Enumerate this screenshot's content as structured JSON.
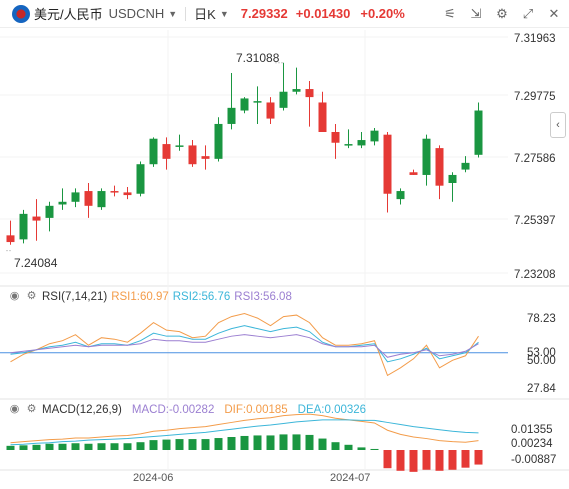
{
  "header": {
    "symbol_name": "美元/人民币",
    "symbol_code": "USDCNH",
    "period": "日K",
    "price": "7.29332",
    "change": "+0.01430",
    "change_pct": "+0.20%",
    "tools": [
      "indicators-icon",
      "fullscreen-exit-icon",
      "chart-settings-icon",
      "expand-icon",
      "close-icon"
    ],
    "up_color": "#e53935",
    "down_color": "#1a9641"
  },
  "main_panel": {
    "price_axis": [
      "7.31963",
      "7.29775",
      "7.27586",
      "7.25397",
      "7.23208"
    ],
    "high_label": "7.31088",
    "low_label": "7.24084"
  },
  "rsi_panel": {
    "name": "RSI(7,14,21)",
    "rsi1": "RSI1:60.97",
    "rsi2": "RSI2:56.76",
    "rsi3": "RSI3:56.08",
    "axis": [
      "78.23",
      "53.00",
      "50.00",
      "27.84"
    ],
    "colors": {
      "rsi1": "#f39c4a",
      "rsi2": "#3cb6d9",
      "rsi3": "#9b7fd1"
    }
  },
  "macd_panel": {
    "name": "MACD(12,26,9)",
    "macd": "MACD:-0.00282",
    "dif": "DIF:0.00185",
    "dea": "DEA:0.00326",
    "axis": [
      "0.01355",
      "0.00234",
      "-0.00887"
    ],
    "colors": {
      "dif": "#f39c4a",
      "dea": "#3cb6d9"
    }
  },
  "time_axis": [
    "2024-06",
    "2024-07"
  ],
  "chart_data": {
    "type": "candlestick",
    "candles": [
      {
        "o": 7.2465,
        "h": 7.252,
        "l": 7.243,
        "c": 7.244
      },
      {
        "o": 7.245,
        "h": 7.256,
        "l": 7.2435,
        "c": 7.2545
      },
      {
        "o": 7.2535,
        "h": 7.26,
        "l": 7.2445,
        "c": 7.252
      },
      {
        "o": 7.253,
        "h": 7.259,
        "l": 7.248,
        "c": 7.2575
      },
      {
        "o": 7.258,
        "h": 7.264,
        "l": 7.256,
        "c": 7.259
      },
      {
        "o": 7.259,
        "h": 7.264,
        "l": 7.257,
        "c": 7.2625
      },
      {
        "o": 7.263,
        "h": 7.266,
        "l": 7.253,
        "c": 7.2575
      },
      {
        "o": 7.257,
        "h": 7.264,
        "l": 7.256,
        "c": 7.263
      },
      {
        "o": 7.263,
        "h": 7.265,
        "l": 7.261,
        "c": 7.2625
      },
      {
        "o": 7.2625,
        "h": 7.2645,
        "l": 7.26,
        "c": 7.2615
      },
      {
        "o": 7.262,
        "h": 7.274,
        "l": 7.261,
        "c": 7.273
      },
      {
        "o": 7.273,
        "h": 7.283,
        "l": 7.272,
        "c": 7.2825
      },
      {
        "o": 7.2805,
        "h": 7.283,
        "l": 7.271,
        "c": 7.275
      },
      {
        "o": 7.28,
        "h": 7.284,
        "l": 7.278,
        "c": 7.28
      },
      {
        "o": 7.28,
        "h": 7.282,
        "l": 7.272,
        "c": 7.273
      },
      {
        "o": 7.276,
        "h": 7.28,
        "l": 7.271,
        "c": 7.275
      },
      {
        "o": 7.275,
        "h": 7.2905,
        "l": 7.274,
        "c": 7.288
      },
      {
        "o": 7.288,
        "h": 7.307,
        "l": 7.286,
        "c": 7.294
      },
      {
        "o": 7.293,
        "h": 7.298,
        "l": 7.292,
        "c": 7.2975
      },
      {
        "o": 7.2965,
        "h": 7.302,
        "l": 7.288,
        "c": 7.2965
      },
      {
        "o": 7.296,
        "h": 7.298,
        "l": 7.288,
        "c": 7.29
      },
      {
        "o": 7.294,
        "h": 7.3108,
        "l": 7.293,
        "c": 7.3
      },
      {
        "o": 7.3,
        "h": 7.309,
        "l": 7.299,
        "c": 7.301
      },
      {
        "o": 7.301,
        "h": 7.304,
        "l": 7.287,
        "c": 7.298
      },
      {
        "o": 7.296,
        "h": 7.3,
        "l": 7.285,
        "c": 7.285
      },
      {
        "o": 7.285,
        "h": 7.288,
        "l": 7.275,
        "c": 7.281
      },
      {
        "o": 7.28,
        "h": 7.286,
        "l": 7.279,
        "c": 7.2805
      },
      {
        "o": 7.28,
        "h": 7.285,
        "l": 7.279,
        "c": 7.282
      },
      {
        "o": 7.2815,
        "h": 7.2865,
        "l": 7.28,
        "c": 7.2855
      },
      {
        "o": 7.284,
        "h": 7.285,
        "l": 7.255,
        "c": 7.262
      },
      {
        "o": 7.26,
        "h": 7.264,
        "l": 7.258,
        "c": 7.263
      },
      {
        "o": 7.27,
        "h": 7.271,
        "l": 7.269,
        "c": 7.269
      },
      {
        "o": 7.269,
        "h": 7.284,
        "l": 7.265,
        "c": 7.2825
      },
      {
        "o": 7.279,
        "h": 7.28,
        "l": 7.26,
        "c": 7.265
      },
      {
        "o": 7.266,
        "h": 7.27,
        "l": 7.259,
        "c": 7.269
      },
      {
        "o": 7.271,
        "h": 7.276,
        "l": 7.27,
        "c": 7.2735
      },
      {
        "o": 7.2765,
        "h": 7.296,
        "l": 7.2755,
        "c": 7.293
      }
    ],
    "price_range": [
      7.228,
      7.323
    ],
    "rsi": {
      "rsi1": [
        44,
        49,
        52,
        56,
        58,
        62,
        55,
        60,
        59,
        57,
        63,
        70,
        65,
        64,
        60,
        61,
        70,
        74,
        76,
        73,
        68,
        74,
        75,
        70,
        60,
        55,
        55,
        56,
        58,
        35,
        40,
        46,
        55,
        40,
        45,
        48,
        61
      ],
      "rsi2": [
        49,
        50,
        52,
        54,
        55,
        57,
        54,
        56,
        56,
        55,
        58,
        63,
        61,
        61,
        59,
        59,
        63,
        66,
        68,
        66,
        64,
        66,
        67,
        64,
        57,
        54,
        54,
        55,
        56,
        44,
        46,
        49,
        53,
        46,
        48,
        50,
        57
      ],
      "rsi3": [
        50,
        51,
        52,
        53,
        54,
        55,
        54,
        55,
        55,
        55,
        56,
        59,
        58,
        58,
        57,
        57,
        59,
        61,
        62,
        61,
        60,
        61,
        62,
        60,
        56,
        54,
        54,
        54,
        55,
        47,
        49,
        50,
        52,
        48,
        49,
        51,
        56
      ]
    },
    "macd": {
      "hist": [
        0.0008,
        0.0009,
        0.001,
        0.0012,
        0.0012,
        0.0013,
        0.0012,
        0.0013,
        0.0013,
        0.0013,
        0.0015,
        0.0019,
        0.002,
        0.0021,
        0.0021,
        0.0021,
        0.0023,
        0.0025,
        0.0027,
        0.0028,
        0.0028,
        0.003,
        0.003,
        0.0029,
        0.0022,
        0.0015,
        0.001,
        0.0005,
        0.0002,
        -0.0035,
        -0.004,
        -0.0042,
        -0.0038,
        -0.004,
        -0.0038,
        -0.0034,
        -0.0028
      ],
      "dif": [
        0.0014,
        0.0016,
        0.0018,
        0.002,
        0.0021,
        0.0023,
        0.0023,
        0.0025,
        0.0027,
        0.0028,
        0.0031,
        0.0036,
        0.0038,
        0.0041,
        0.0043,
        0.0045,
        0.0049,
        0.0053,
        0.0057,
        0.006,
        0.0062,
        0.0066,
        0.0068,
        0.0069,
        0.0066,
        0.0061,
        0.0058,
        0.0055,
        0.0052,
        0.0038,
        0.003,
        0.0025,
        0.0022,
        0.0018,
        0.0016,
        0.0015,
        0.0018
      ],
      "dea": [
        0.001,
        0.0011,
        0.0013,
        0.0014,
        0.0016,
        0.0017,
        0.0019,
        0.002,
        0.0021,
        0.0022,
        0.0024,
        0.0026,
        0.0028,
        0.003,
        0.0032,
        0.0034,
        0.0037,
        0.004,
        0.0043,
        0.0046,
        0.0048,
        0.0051,
        0.0054,
        0.0056,
        0.0058,
        0.0058,
        0.0058,
        0.0057,
        0.0057,
        0.0053,
        0.0049,
        0.0045,
        0.0042,
        0.0039,
        0.0036,
        0.0034,
        0.0033
      ]
    }
  }
}
